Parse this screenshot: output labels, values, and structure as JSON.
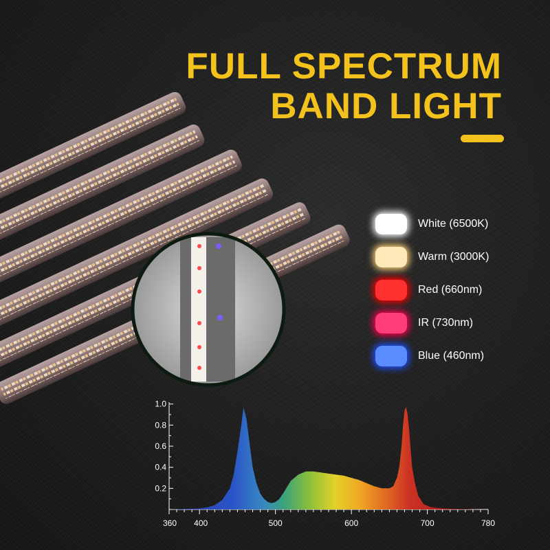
{
  "title": {
    "line1": "FULL SPECTRUM",
    "line2": "BAND LIGHT",
    "accent_color": "#f4c21c"
  },
  "legend": [
    {
      "label": "White (6500K)",
      "color": "#ffffff",
      "glow": "#ffffff"
    },
    {
      "label": "Warm (3000K)",
      "color": "#ffe9b8",
      "glow": "#ffd27a"
    },
    {
      "label": "Red (660nm)",
      "color": "#ff3030",
      "glow": "#ff0000"
    },
    {
      "label": "IR (730nm)",
      "color": "#ff3d78",
      "glow": "#ff0050"
    },
    {
      "label": "Blue (460nm)",
      "color": "#5a8cff",
      "glow": "#1f4fff"
    }
  ],
  "chart_data": {
    "type": "area",
    "title": "",
    "xlabel": "",
    "ylabel": "",
    "xlim": [
      360,
      780
    ],
    "ylim": [
      0,
      1.05
    ],
    "x_ticks": [
      360,
      400,
      500,
      600,
      700,
      780
    ],
    "y_ticks": [
      0.2,
      0.4,
      0.6,
      0.8,
      1.0
    ],
    "grid": false,
    "series": [
      {
        "x": [
          360,
          380,
          400,
          410,
          420,
          430,
          440,
          445,
          450,
          455,
          458,
          462,
          466,
          470,
          475,
          480,
          485,
          490,
          495,
          500,
          505,
          510,
          515,
          520,
          530,
          540,
          550,
          560,
          570,
          580,
          590,
          600,
          610,
          620,
          630,
          640,
          650,
          655,
          660,
          663,
          666,
          668,
          670,
          672,
          674,
          676,
          678,
          680,
          684,
          688,
          695,
          705,
          720,
          740,
          760,
          780
        ],
        "y": [
          0,
          0.005,
          0.01,
          0.02,
          0.04,
          0.09,
          0.2,
          0.33,
          0.55,
          0.8,
          0.97,
          0.85,
          0.62,
          0.4,
          0.25,
          0.15,
          0.1,
          0.07,
          0.06,
          0.07,
          0.1,
          0.15,
          0.21,
          0.27,
          0.33,
          0.36,
          0.36,
          0.35,
          0.34,
          0.33,
          0.32,
          0.3,
          0.28,
          0.25,
          0.22,
          0.2,
          0.2,
          0.22,
          0.3,
          0.4,
          0.6,
          0.8,
          0.94,
          0.97,
          0.9,
          0.76,
          0.57,
          0.4,
          0.24,
          0.13,
          0.05,
          0.02,
          0.01,
          0.005,
          0.002,
          0
        ]
      }
    ]
  }
}
